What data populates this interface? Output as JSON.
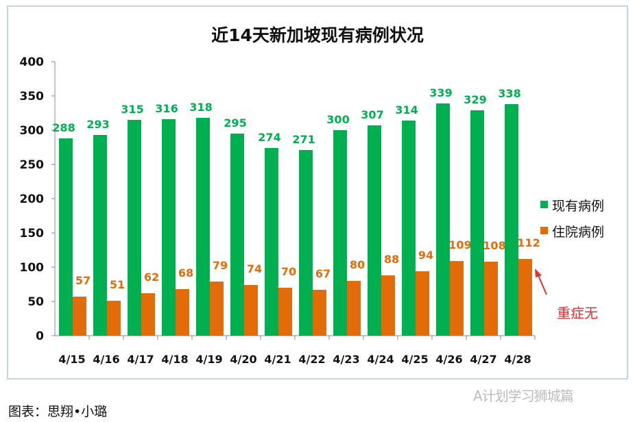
{
  "chart_data": {
    "type": "bar",
    "title": "近14天新加坡现有病例状况",
    "categories": [
      "4/15",
      "4/16",
      "4/17",
      "4/18",
      "4/19",
      "4/20",
      "4/21",
      "4/22",
      "4/23",
      "4/24",
      "4/25",
      "4/26",
      "4/27",
      "4/28"
    ],
    "series": [
      {
        "name": "现有病例",
        "color": "#00b050",
        "values": [
          288,
          293,
          315,
          316,
          318,
          295,
          274,
          271,
          300,
          307,
          314,
          339,
          329,
          338
        ]
      },
      {
        "name": "住院病例",
        "color": "#e36c09",
        "values": [
          57,
          51,
          62,
          68,
          79,
          74,
          70,
          67,
          80,
          88,
          94,
          109,
          108,
          112
        ]
      }
    ],
    "ylim": [
      0,
      400
    ],
    "yticks": [
      0,
      50,
      100,
      150,
      200,
      250,
      300,
      350,
      400
    ],
    "grid": false,
    "legend": "right",
    "annotation": {
      "text": "重症无",
      "color": "#e03030"
    }
  },
  "footer": {
    "credit": "图表：思翔•小璐",
    "watermark": "A计划学习狮城篇"
  }
}
